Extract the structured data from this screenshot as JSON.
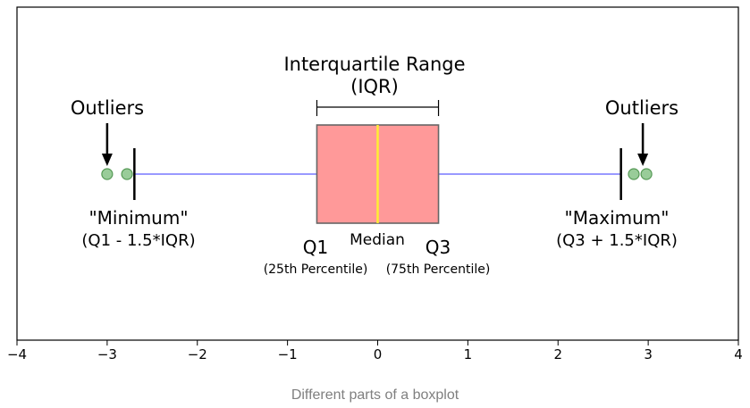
{
  "caption": "Different parts of a boxplot",
  "chart_data": {
    "type": "boxplot",
    "orientation": "horizontal",
    "xlim": [
      -4,
      4
    ],
    "ticks": [
      -4,
      -3,
      -2,
      -1,
      0,
      1,
      2,
      3,
      4
    ],
    "tick_labels": [
      "−4",
      "−3",
      "−2",
      "−1",
      "0",
      "1",
      "2",
      "3",
      "4"
    ],
    "q1": -0.6745,
    "median": 0,
    "q3": 0.6745,
    "whisker_low": -2.698,
    "whisker_high": 2.698,
    "outliers": [
      -3.0,
      -2.78,
      2.84,
      2.98
    ],
    "colors": {
      "box_fill": "#ff9999",
      "box_edge": "#666666",
      "median": "#ffee33",
      "whisker": "#9999ff",
      "outlier_fill": "#99cc99",
      "outlier_edge": "#559955"
    }
  },
  "annotations": {
    "iqr_title": "Interquartile Range",
    "iqr_sub": "(IQR)",
    "outliers_left": "Outliers",
    "outliers_right": "Outliers",
    "minimum": "\"Minimum\"",
    "minimum_formula": "(Q1 - 1.5*IQR)",
    "maximum": "\"Maximum\"",
    "maximum_formula": "(Q3 + 1.5*IQR)",
    "q1": "Q1",
    "q1_sub": "(25th Percentile)",
    "median": "Median",
    "q3": "Q3",
    "q3_sub": "(75th Percentile)"
  }
}
